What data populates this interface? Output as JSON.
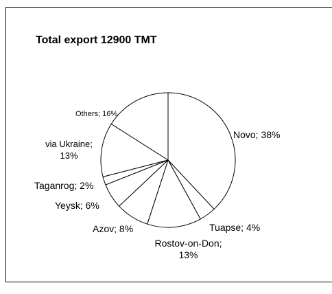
{
  "chart_data": {
    "type": "pie",
    "title": "Total export 12900 TMT",
    "values": [
      38,
      4,
      13,
      8,
      6,
      2,
      13,
      16
    ],
    "value_labels": [
      "Novo; 38%",
      "Tuapse; 4%",
      "Rostov-on-Don; 13%",
      "Azov; 8%",
      "Yeysk; 6%",
      "Taganrog; 2%",
      "via Ukraine; 13%",
      "Others; 16%"
    ],
    "color": "#ffffff"
  }
}
